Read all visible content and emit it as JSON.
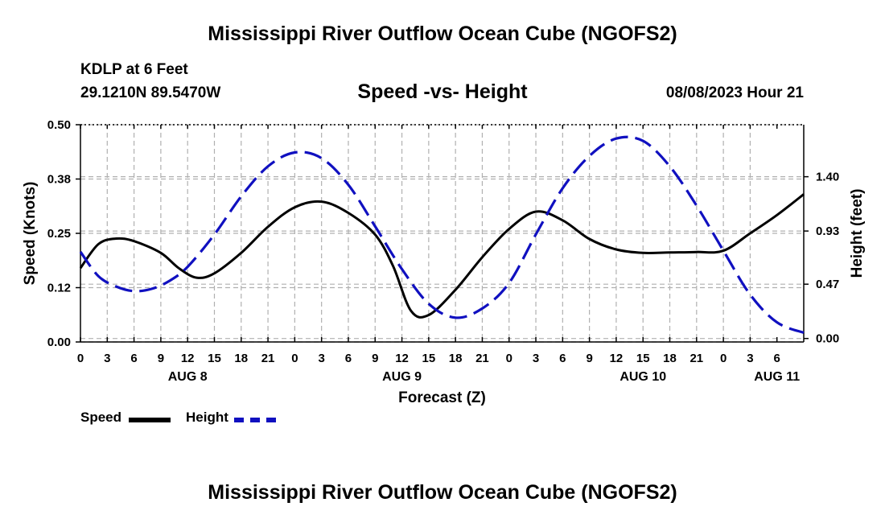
{
  "header": {
    "title": "Mississippi River Outflow Ocean Cube (NGOFS2)",
    "station": "KDLP at 6 Feet",
    "coords": "29.1210N  89.5470W",
    "subtitle": "Speed -vs- Height",
    "datetime": "08/08/2023 Hour 21"
  },
  "footer": {
    "title": "Mississippi River Outflow Ocean Cube (NGOFS2)"
  },
  "legend": {
    "speed_label": "Speed",
    "height_label": "Height"
  },
  "colors": {
    "speed": "#000000",
    "height": "#1010c0",
    "grid": "#b0b0b0"
  },
  "chart_data": {
    "type": "line",
    "title": "Speed -vs- Height",
    "xlabel": "Forecast (Z)",
    "ylabel_left": "Speed (Knots)",
    "ylabel_right": "Height (feet)",
    "x_range_hours": [
      0,
      81
    ],
    "x_tick_labels": [
      "0",
      "3",
      "6",
      "9",
      "12",
      "15",
      "18",
      "21",
      "0",
      "3",
      "6",
      "9",
      "12",
      "15",
      "18",
      "21",
      "0",
      "3",
      "6",
      "9",
      "12",
      "15",
      "18",
      "21",
      "0",
      "3",
      "6"
    ],
    "day_labels": [
      {
        "label": "AUG 8",
        "hour": 12
      },
      {
        "label": "AUG 9",
        "hour": 36
      },
      {
        "label": "AUG 10",
        "hour": 63
      },
      {
        "label": "AUG 11",
        "hour": 78
      }
    ],
    "left_axis": {
      "ylim": [
        0,
        0.5
      ],
      "ticks": [
        0.0,
        0.125,
        0.25,
        0.375,
        0.5
      ],
      "tick_labels": [
        "0.00",
        "0.12",
        "0.25",
        "0.38",
        "0.50"
      ]
    },
    "right_axis": {
      "ylim": [
        -0.03,
        1.85
      ],
      "ticks": [
        0.0,
        0.47,
        0.93,
        1.4
      ],
      "tick_labels": [
        "0.00",
        "0.47",
        "0.93",
        "1.40"
      ]
    },
    "series": [
      {
        "name": "Speed",
        "axis": "left",
        "style": "solid",
        "x": [
          0,
          2,
          4,
          6,
          9,
          11,
          13,
          15,
          18,
          21,
          24,
          27,
          30,
          33,
          35,
          37,
          39,
          42,
          45,
          48,
          51,
          54,
          57,
          60,
          63,
          66,
          69,
          72,
          75,
          78,
          81
        ],
        "y": [
          0.17,
          0.225,
          0.238,
          0.232,
          0.205,
          0.17,
          0.148,
          0.158,
          0.205,
          0.265,
          0.31,
          0.323,
          0.297,
          0.247,
          0.175,
          0.072,
          0.062,
          0.12,
          0.195,
          0.26,
          0.3,
          0.28,
          0.237,
          0.213,
          0.205,
          0.206,
          0.207,
          0.21,
          0.25,
          0.292,
          0.34
        ]
      },
      {
        "name": "Height",
        "axis": "right",
        "style": "dashed",
        "x": [
          0,
          2,
          4,
          6,
          8,
          10,
          12,
          15,
          18,
          21,
          24,
          27,
          30,
          33,
          36,
          39,
          42,
          45,
          48,
          51,
          54,
          57,
          60,
          63,
          66,
          69,
          72,
          75,
          78,
          81
        ],
        "y": [
          0.75,
          0.54,
          0.45,
          0.41,
          0.43,
          0.5,
          0.62,
          0.9,
          1.23,
          1.49,
          1.61,
          1.56,
          1.33,
          0.97,
          0.6,
          0.3,
          0.18,
          0.26,
          0.48,
          0.9,
          1.3,
          1.58,
          1.73,
          1.71,
          1.49,
          1.15,
          0.76,
          0.38,
          0.14,
          0.05
        ]
      }
    ]
  }
}
